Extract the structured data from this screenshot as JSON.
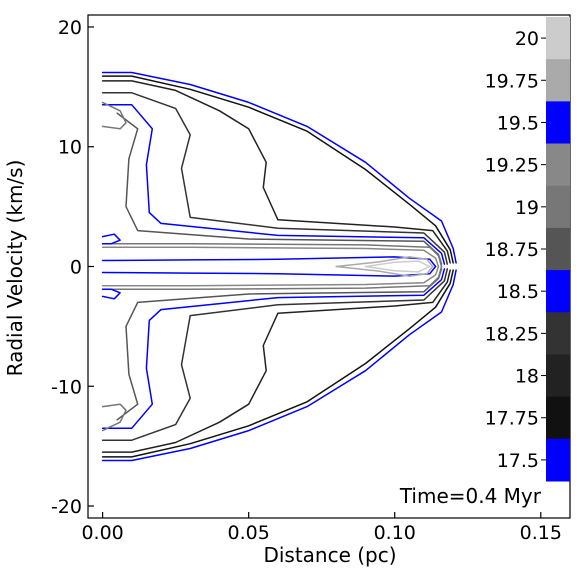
{
  "chart_data": {
    "type": "contour",
    "xlabel": "Distance (pc)",
    "ylabel": "Radial Velocity (km/s)",
    "xlim": [
      -0.005,
      0.16
    ],
    "ylim": [
      -21,
      21
    ],
    "xticks": [
      0.0,
      0.05,
      0.1,
      0.15
    ],
    "xtick_labels": [
      "0.00",
      "0.05",
      "0.10",
      "0.15"
    ],
    "yticks": [
      -20,
      -10,
      0,
      10,
      20
    ],
    "ytick_labels": [
      "-20",
      "-10",
      "0",
      "10",
      "20"
    ],
    "annotation": "Time=0.4 Myr",
    "legend_position": "right",
    "colorbar": {
      "levels": [
        {
          "value": 17.5,
          "label": "17.5",
          "color": "#0000ff"
        },
        {
          "value": 17.75,
          "label": "17.75",
          "color": "#111111"
        },
        {
          "value": 18.0,
          "label": "18",
          "color": "#222222"
        },
        {
          "value": 18.25,
          "label": "18.25",
          "color": "#333333"
        },
        {
          "value": 18.5,
          "label": "18.5",
          "color": "#0000ff"
        },
        {
          "value": 18.75,
          "label": "18.75",
          "color": "#555555"
        },
        {
          "value": 19.0,
          "label": "19",
          "color": "#777777"
        },
        {
          "value": 19.25,
          "label": "19.25",
          "color": "#888888"
        },
        {
          "value": 19.5,
          "label": "19.5",
          "color": "#0000ff"
        },
        {
          "value": 19.75,
          "label": "19.75",
          "color": "#aaaaaa"
        },
        {
          "value": 20.0,
          "label": "20",
          "color": "#cccccc"
        }
      ]
    },
    "contours": [
      {
        "level": 17.5,
        "color": "#0000ff",
        "points": [
          [
            0.0,
            16.2
          ],
          [
            0.01,
            16.2
          ],
          [
            0.03,
            15.2
          ],
          [
            0.05,
            13.7
          ],
          [
            0.07,
            11.7
          ],
          [
            0.09,
            8.7
          ],
          [
            0.105,
            5.7
          ],
          [
            0.116,
            3.8
          ],
          [
            0.12,
            1.5
          ],
          [
            0.121,
            0.3
          ]
        ]
      },
      {
        "level": 17.75,
        "color": "#111111",
        "points": [
          [
            0.0,
            15.9
          ],
          [
            0.01,
            15.9
          ],
          [
            0.03,
            14.8
          ],
          [
            0.05,
            13.3
          ],
          [
            0.07,
            11.3
          ],
          [
            0.09,
            8.1
          ],
          [
            0.105,
            5.2
          ],
          [
            0.114,
            3.4
          ],
          [
            0.119,
            1.4
          ],
          [
            0.12,
            0.3
          ]
        ]
      },
      {
        "level": 18.0,
        "color": "#222222",
        "points": [
          [
            0.0,
            15.5
          ],
          [
            0.01,
            15.5
          ],
          [
            0.025,
            14.7
          ],
          [
            0.04,
            13.0
          ],
          [
            0.05,
            11.5
          ],
          [
            0.056,
            8.7
          ],
          [
            0.055,
            6.6
          ],
          [
            0.06,
            3.9
          ],
          [
            0.1,
            3.3
          ],
          [
            0.113,
            3.0
          ],
          [
            0.118,
            1.3
          ],
          [
            0.119,
            0.3
          ]
        ]
      },
      {
        "level": 18.25,
        "color": "#333333",
        "points": [
          [
            0.0,
            14.5
          ],
          [
            0.01,
            14.5
          ],
          [
            0.025,
            13.2
          ],
          [
            0.03,
            11.0
          ],
          [
            0.027,
            8.2
          ],
          [
            0.03,
            4.1
          ],
          [
            0.06,
            3.2
          ],
          [
            0.11,
            2.8
          ],
          [
            0.117,
            1.2
          ],
          [
            0.118,
            0.2
          ]
        ]
      },
      {
        "level": 18.5,
        "color": "#0000ff",
        "points": [
          [
            0.0,
            13.5
          ],
          [
            0.01,
            13.5
          ],
          [
            0.017,
            11.5
          ],
          [
            0.015,
            8.5
          ],
          [
            0.016,
            4.5
          ],
          [
            0.02,
            3.6
          ],
          [
            0.06,
            2.6
          ],
          [
            0.11,
            2.4
          ],
          [
            0.116,
            1.1
          ],
          [
            0.117,
            0.2
          ]
        ]
      },
      {
        "level": 18.75,
        "color": "#555555",
        "points": [
          [
            0.005,
            12.8
          ],
          [
            0.012,
            11.5
          ],
          [
            0.009,
            9.0
          ],
          [
            0.008,
            5.0
          ],
          [
            0.012,
            3.0
          ],
          [
            0.05,
            2.3
          ],
          [
            0.11,
            2.1
          ],
          [
            0.115,
            1.0
          ],
          [
            0.116,
            0.2
          ]
        ]
      },
      {
        "level": 19.0,
        "color": "#777777",
        "points": [
          [
            0.0,
            13.7
          ],
          [
            0.006,
            13.0
          ],
          [
            0.008,
            12.0
          ],
          [
            0.006,
            11.5
          ],
          [
            0.0,
            11.7
          ]
        ]
      },
      {
        "level": 19.0,
        "color": "#777777",
        "points": [
          [
            0.0,
            1.9
          ],
          [
            0.03,
            1.9
          ],
          [
            0.09,
            1.8
          ],
          [
            0.112,
            1.6
          ],
          [
            0.115,
            0.9
          ],
          [
            0.116,
            0.0
          ]
        ]
      },
      {
        "level": 19.25,
        "color": "#888888",
        "points": [
          [
            0.0,
            1.6
          ],
          [
            0.03,
            1.6
          ],
          [
            0.09,
            1.5
          ],
          [
            0.11,
            1.35
          ],
          [
            0.114,
            0.7
          ],
          [
            0.115,
            0.0
          ]
        ]
      },
      {
        "level": 19.5,
        "color": "#0000ff",
        "points": [
          [
            0.0,
            2.5
          ],
          [
            0.004,
            2.7
          ],
          [
            0.006,
            2.2
          ],
          [
            0.003,
            1.9
          ],
          [
            0.0,
            1.9
          ]
        ]
      },
      {
        "level": 19.5,
        "color": "#0000ff",
        "points": [
          [
            0.0,
            0.5
          ],
          [
            0.03,
            0.55
          ],
          [
            0.06,
            0.6
          ],
          [
            0.1,
            0.8
          ],
          [
            0.112,
            0.6
          ],
          [
            0.114,
            0.0
          ]
        ]
      },
      {
        "level": 19.75,
        "color": "#aaaaaa",
        "points": [
          [
            0.08,
            0.0
          ],
          [
            0.095,
            0.4
          ],
          [
            0.105,
            0.8
          ],
          [
            0.111,
            0.6
          ],
          [
            0.113,
            0.0
          ]
        ]
      },
      {
        "level": 20.0,
        "color": "#cccccc",
        "points": [
          [
            0.09,
            0.0
          ],
          [
            0.1,
            0.35
          ],
          [
            0.108,
            0.45
          ],
          [
            0.112,
            0.0
          ]
        ]
      }
    ]
  }
}
